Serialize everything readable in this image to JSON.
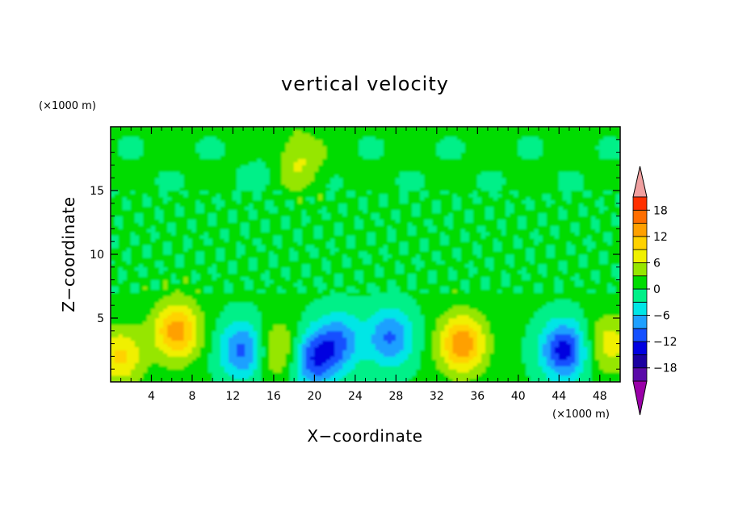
{
  "chart_data": {
    "type": "heatmap",
    "title": "vertical velocity",
    "xlabel": "X−coordinate",
    "ylabel": "Z−coordinate",
    "x_unit": "(×1000 m)",
    "y_unit": "(×1000 m)",
    "xlim": [
      0,
      50
    ],
    "ylim": [
      0,
      20
    ],
    "x_ticks": [
      "4",
      "8",
      "12",
      "16",
      "20",
      "24",
      "28",
      "32",
      "36",
      "40",
      "44",
      "48"
    ],
    "y_ticks": [
      "5",
      "10",
      "15"
    ],
    "colorbar_levels": [
      -21,
      -18,
      -15,
      -12,
      -9,
      -6,
      -3,
      0,
      3,
      6,
      9,
      12,
      15,
      18,
      21
    ],
    "colorbar_labels": [
      "18",
      "12",
      "6",
      "0",
      "−6",
      "−12",
      "−18"
    ],
    "colorbar_colors": [
      "#9a00a8",
      "#5a0aa8",
      "#1a00a0",
      "#0000e0",
      "#1450ff",
      "#1ea0ff",
      "#00e6e6",
      "#00f088",
      "#00dc00",
      "#96e600",
      "#f0f000",
      "#ffd200",
      "#ffa000",
      "#ff6e00",
      "#ff3000",
      "#e00000",
      "#f0a0a0"
    ],
    "features": [
      {
        "x": 1.0,
        "z": 2.0,
        "value": 9
      },
      {
        "x": 6.5,
        "z": 4.0,
        "value": 13
      },
      {
        "x": 13.0,
        "z": 2.5,
        "value": -11
      },
      {
        "x": 16.5,
        "z": 2.5,
        "value": 7
      },
      {
        "x": 18.5,
        "z": 17.5,
        "value": 6
      },
      {
        "x": 20.0,
        "z": 1.8,
        "value": -12
      },
      {
        "x": 22.5,
        "z": 3.2,
        "value": -9
      },
      {
        "x": 27.5,
        "z": 3.5,
        "value": -10
      },
      {
        "x": 34.5,
        "z": 3.0,
        "value": 14
      },
      {
        "x": 44.5,
        "z": 2.5,
        "value": -14
      },
      {
        "x": 49.0,
        "z": 3.0,
        "value": 7
      }
    ]
  }
}
